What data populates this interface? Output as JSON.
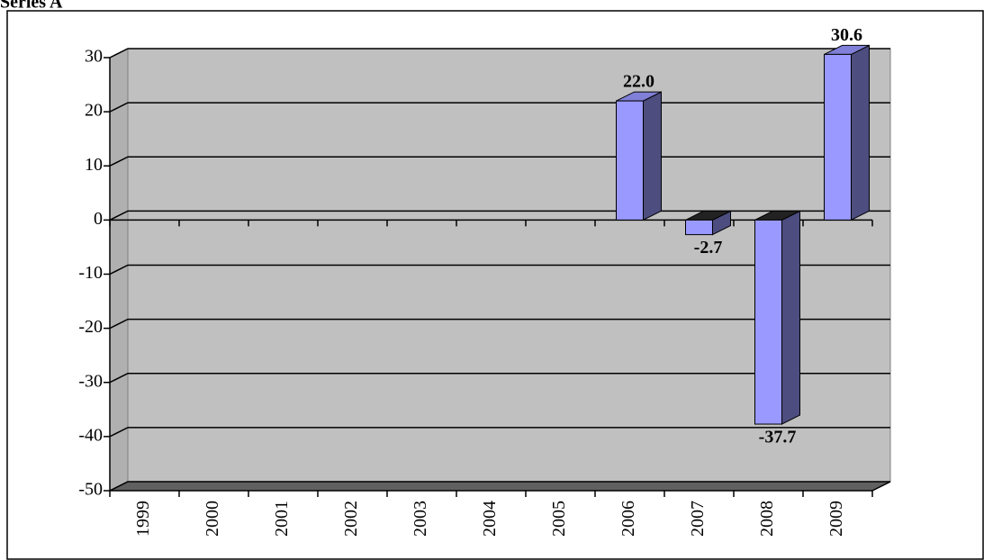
{
  "chart_data": {
    "type": "bar3d",
    "title": "Series A",
    "categories": [
      "1999",
      "2000",
      "2001",
      "2002",
      "2003",
      "2004",
      "2005",
      "2006",
      "2007",
      "2008",
      "2009"
    ],
    "values": [
      null,
      null,
      null,
      null,
      null,
      null,
      null,
      22.0,
      -2.7,
      -37.7,
      30.6
    ],
    "value_labels": [
      null,
      null,
      null,
      null,
      null,
      null,
      null,
      "22.0",
      "-2.7",
      "-37.7",
      "30.6"
    ],
    "color": "#9999ff",
    "ylim": [
      -50,
      30
    ],
    "yticks": [
      -50,
      -40,
      -30,
      -20,
      -10,
      0,
      10,
      20,
      30
    ],
    "grid": true
  }
}
